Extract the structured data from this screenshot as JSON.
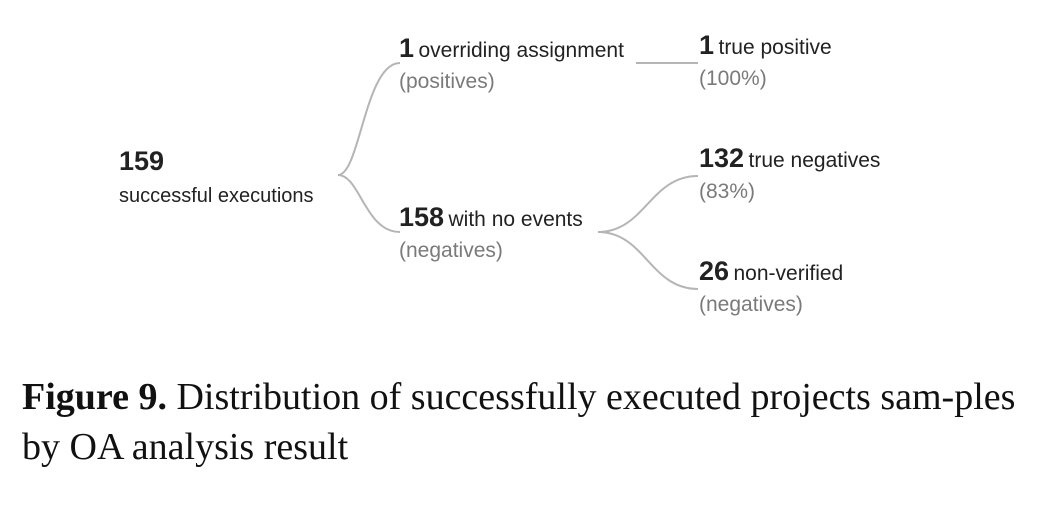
{
  "diagram": {
    "root": {
      "number": "159",
      "label": "successful executions"
    },
    "positives_node": {
      "number": "1",
      "label": "overriding assignment",
      "sub": "(positives)"
    },
    "negatives_node": {
      "number": "158",
      "label": "with no events",
      "sub": "(negatives)"
    },
    "true_positive": {
      "number": "1",
      "label": "true positive",
      "sub": "(100%)"
    },
    "true_negatives": {
      "number": "132",
      "label": "true negatives",
      "sub": "(83%)"
    },
    "non_verified": {
      "number": "26",
      "label": "non-verified",
      "sub": "(negatives)"
    },
    "line_color": "#b5b5b5"
  },
  "caption": {
    "label": "Figure 9.",
    "text": "Distribution of successfully executed projects sam-ples by OA analysis result"
  }
}
